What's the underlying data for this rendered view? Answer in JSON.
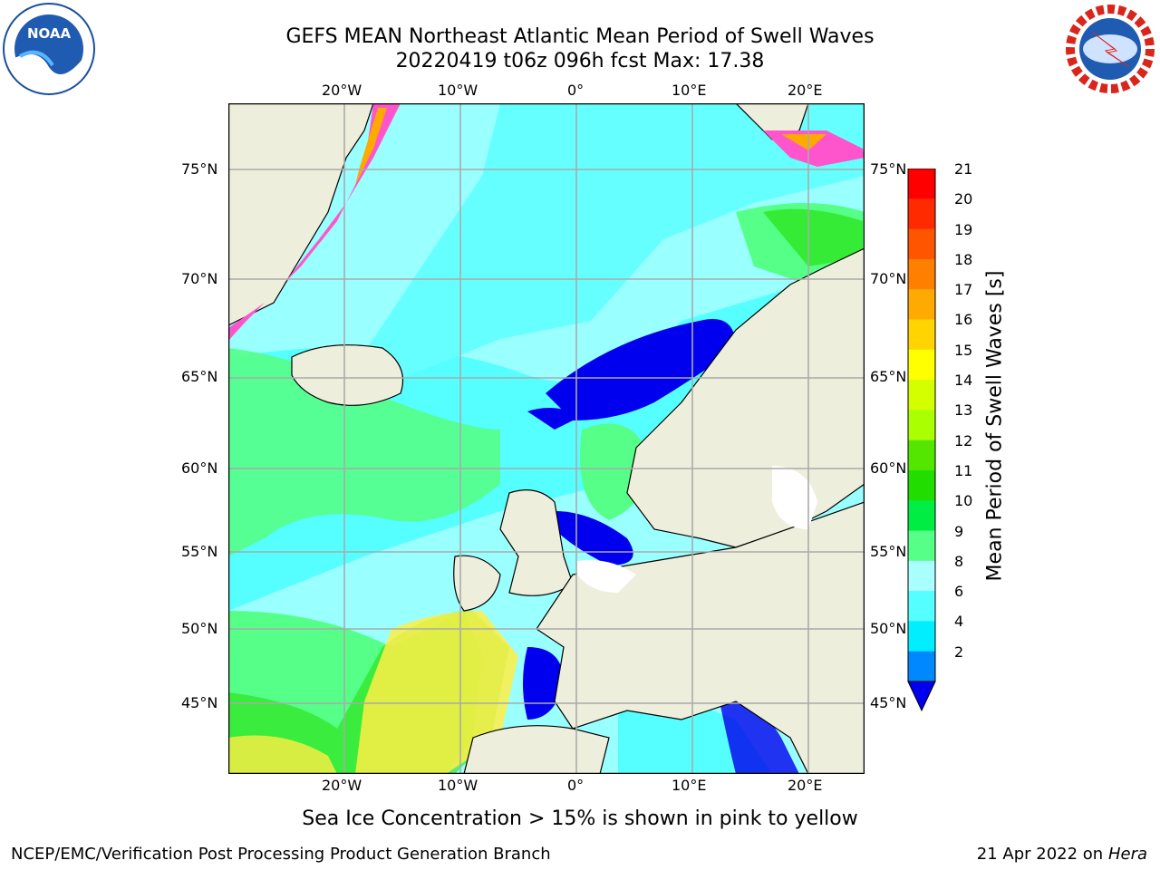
{
  "title": {
    "line1": "GEFS MEAN Northeast Atlantic Mean Period of Swell Waves",
    "line2": "20220419 t06z 096h fcst   Max: 17.38"
  },
  "map": {
    "lon_labels": [
      "20°W",
      "10°W",
      "0°",
      "10°E",
      "20°E"
    ],
    "lat_labels": [
      "75°N",
      "70°N",
      "65°N",
      "60°N",
      "55°N",
      "50°N",
      "45°N"
    ],
    "land_color": "#eeeedd",
    "grid_color": "#aaaaaa"
  },
  "colorbar": {
    "label": "Mean Period of Swell Waves [s]",
    "ticks": [
      "21",
      "20",
      "19",
      "18",
      "17",
      "16",
      "15",
      "14",
      "13",
      "12",
      "11",
      "10",
      "9",
      "8",
      "6",
      "4",
      "2"
    ],
    "colors": [
      "#ff0000",
      "#ff2a00",
      "#ff5500",
      "#ff7f00",
      "#ffaa00",
      "#ffd400",
      "#ffff00",
      "#d4ff00",
      "#aaff00",
      "#55e600",
      "#22dd00",
      "#00ee44",
      "#55ff88",
      "#aaffff",
      "#55ffff",
      "#00eeff",
      "#0088ff"
    ],
    "under_color": "#0000ee"
  },
  "ice_note": "Sea Ice Concentration > 15% is shown in pink to yellow",
  "footer": {
    "left": "NCEP/EMC/Verification Post Processing Product Generation Branch",
    "right_date": "21 Apr 2022 on ",
    "right_host": "Hera"
  },
  "logos": {
    "noaa": "NOAA",
    "nws_ring": "NATIONAL WEATHER SERVICE"
  }
}
